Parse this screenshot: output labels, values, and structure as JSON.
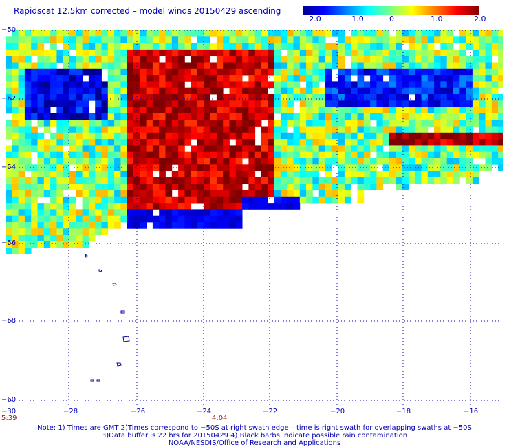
{
  "title": "Rapidscat 12.5km corrected – model winds 20150429 ascending",
  "colorbar": {
    "ticks": [
      "−2.0",
      "−1.0",
      "0",
      "1.0",
      "2.0"
    ],
    "min": -2.0,
    "max": 2.0
  },
  "axes": {
    "lat_ticks": [
      "−50",
      "−52",
      "−54",
      "−56",
      "−58",
      "−60"
    ],
    "lon_ticks": [
      "−30",
      "−28",
      "−26",
      "−24",
      "−22",
      "−20",
      "−18",
      "−16"
    ]
  },
  "times": [
    "5:39",
    "4:04"
  ],
  "notes": [
    "Note: 1) Times are GMT 2)Times correspond to −50S at right swath edge – time is right swath for overlapping swaths at −50S",
    "3)Data buffer is 22 hrs for 20150429 4) Black barbs indicate possible rain contamination",
    "NOAA/NESDIS/Office of Research and Applications"
  ],
  "chart_data": {
    "type": "heatmap",
    "title": "Rapidscat 12.5km corrected – model winds 20150429 ascending",
    "value_range": [
      -2.0,
      2.0
    ],
    "lon_range": [
      -30,
      -15
    ],
    "lat_range": [
      -60,
      -50
    ],
    "field_regions": [
      {
        "name": "positive difference (red/orange)",
        "lon": [
          -26.5,
          -22
        ],
        "lat": [
          -55,
          -50.5
        ],
        "value": 1.7
      },
      {
        "name": "negative difference (blue)",
        "lon": [
          -29.5,
          -27
        ],
        "lat": [
          -52.5,
          -51
        ],
        "value": -1.6
      },
      {
        "name": "negative difference (blue)",
        "lon": [
          -20.5,
          -16
        ],
        "lat": [
          -52,
          -51
        ],
        "value": -1.4
      },
      {
        "name": "negative difference (blue)",
        "lon": [
          -26.5,
          -20.5
        ],
        "lat": [
          -55.5,
          -55
        ],
        "value": -1.7
      },
      {
        "name": "positive difference (red)",
        "lon": [
          -18.5,
          -15
        ],
        "lat": [
          -53.2,
          -52.8
        ],
        "value": 1.8
      }
    ],
    "islands": "South Sandwich Islands"
  }
}
